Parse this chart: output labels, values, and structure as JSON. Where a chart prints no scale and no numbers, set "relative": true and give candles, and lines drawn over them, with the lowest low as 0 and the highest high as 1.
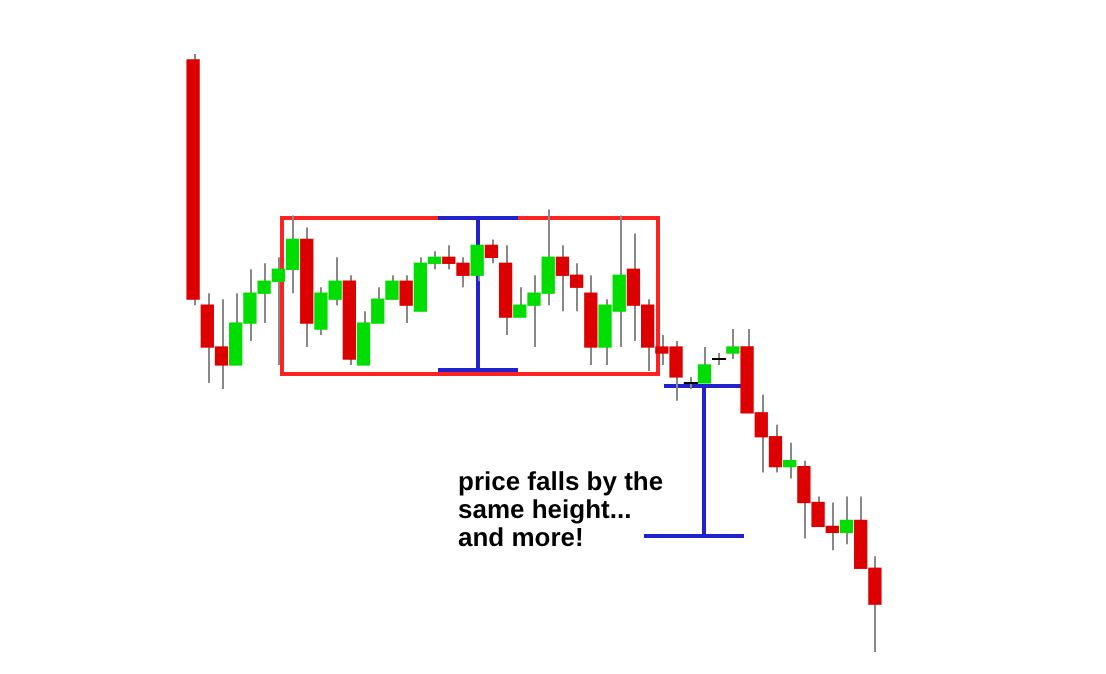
{
  "chart_data": {
    "type": "candlestick",
    "relative": true,
    "categories": [
      null,
      null,
      null,
      null,
      null,
      null,
      null,
      null,
      null,
      null,
      null,
      null,
      null,
      null,
      null,
      null,
      null,
      null,
      null,
      null,
      null,
      null,
      null,
      null,
      null,
      null,
      null,
      null,
      null,
      null,
      null,
      null,
      null,
      null,
      null,
      null,
      null,
      null,
      null,
      null,
      null,
      null,
      null,
      null,
      null,
      null,
      null,
      null,
      null
    ],
    "ohlc": [
      [
        0.99,
        1,
        0.58,
        0.59
      ],
      [
        0.58,
        0.6,
        0.45,
        0.51
      ],
      [
        0.51,
        0.59,
        0.44,
        0.48
      ],
      [
        0.48,
        0.6,
        0.48,
        0.55
      ],
      [
        0.55,
        0.64,
        0.52,
        0.6
      ],
      [
        0.6,
        0.65,
        0.55,
        0.62
      ],
      [
        0.62,
        0.66,
        0.48,
        0.64
      ],
      [
        0.64,
        0.73,
        0.6,
        0.69
      ],
      [
        0.69,
        0.71,
        0.51,
        0.55
      ],
      [
        0.54,
        0.61,
        0.53,
        0.6
      ],
      [
        0.59,
        0.66,
        0.58,
        0.62
      ],
      [
        0.62,
        0.63,
        0.48,
        0.49
      ],
      [
        0.48,
        0.57,
        0.48,
        0.55
      ],
      [
        0.55,
        0.61,
        0.55,
        0.59
      ],
      [
        0.59,
        0.63,
        0.59,
        0.62
      ],
      [
        0.62,
        0.63,
        0.55,
        0.58
      ],
      [
        0.57,
        0.66,
        0.57,
        0.65
      ],
      [
        0.65,
        0.67,
        0.64,
        0.66
      ],
      [
        0.66,
        0.68,
        0.64,
        0.65
      ],
      [
        0.65,
        0.66,
        0.61,
        0.63
      ],
      [
        0.63,
        0.68,
        0.62,
        0.68
      ],
      [
        0.68,
        0.69,
        0.65,
        0.66
      ],
      [
        0.65,
        0.68,
        0.53,
        0.56
      ],
      [
        0.56,
        0.61,
        0.56,
        0.58
      ],
      [
        0.58,
        0.63,
        0.51,
        0.6
      ],
      [
        0.6,
        0.74,
        0.58,
        0.66
      ],
      [
        0.66,
        0.68,
        0.57,
        0.63
      ],
      [
        0.63,
        0.65,
        0.57,
        0.61
      ],
      [
        0.6,
        0.63,
        0.48,
        0.51
      ],
      [
        0.51,
        0.59,
        0.48,
        0.58
      ],
      [
        0.57,
        0.73,
        0.51,
        0.63
      ],
      [
        0.64,
        0.7,
        0.52,
        0.58
      ],
      [
        0.58,
        0.59,
        0.47,
        0.51
      ],
      [
        0.51,
        0.53,
        0.48,
        0.5
      ],
      [
        0.51,
        0.52,
        0.42,
        0.46
      ],
      [
        0.45,
        0.46,
        0.44,
        0.45
      ],
      [
        0.45,
        0.51,
        0.45,
        0.48
      ],
      [
        0.49,
        0.5,
        0.48,
        0.49
      ],
      [
        0.5,
        0.54,
        0.49,
        0.51
      ],
      [
        0.51,
        0.54,
        0.4,
        0.4
      ],
      [
        0.4,
        0.43,
        0.3,
        0.36
      ],
      [
        0.36,
        0.38,
        0.3,
        0.31
      ],
      [
        0.31,
        0.35,
        0.29,
        0.32
      ],
      [
        0.31,
        0.32,
        0.19,
        0.25
      ],
      [
        0.25,
        0.26,
        0.21,
        0.21
      ],
      [
        0.21,
        0.25,
        0.17,
        0.2
      ],
      [
        0.2,
        0.26,
        0.18,
        0.22
      ],
      [
        0.22,
        0.26,
        0.14,
        0.14
      ],
      [
        0.14,
        0.16,
        0,
        0.08
      ]
    ],
    "colors": [
      "#dd0000",
      "#dd0000",
      "#dd0000",
      "#00dd00",
      "#00dd00",
      "#00dd00",
      "#00dd00",
      "#00dd00",
      "#dd0000",
      "#00dd00",
      "#00dd00",
      "#dd0000",
      "#00dd00",
      "#00dd00",
      "#00dd00",
      "#dd0000",
      "#00dd00",
      "#00dd00",
      "#dd0000",
      "#dd0000",
      "#00dd00",
      "#dd0000",
      "#dd0000",
      "#00dd00",
      "#00dd00",
      "#00dd00",
      "#dd0000",
      "#dd0000",
      "#dd0000",
      "#00dd00",
      "#00dd00",
      "#dd0000",
      "#dd0000",
      "#dd0000",
      "#dd0000",
      "#dd0000",
      "#00dd00",
      "#dd0000",
      "#00dd00",
      "#dd0000",
      "#dd0000",
      "#dd0000",
      "#00dd00",
      "#dd0000",
      "#dd0000",
      "#dd0000",
      "#00dd00",
      "#dd0000",
      "#dd0000"
    ],
    "annotations": [
      "price falls by the\nsame height...\nand more!"
    ]
  }
}
